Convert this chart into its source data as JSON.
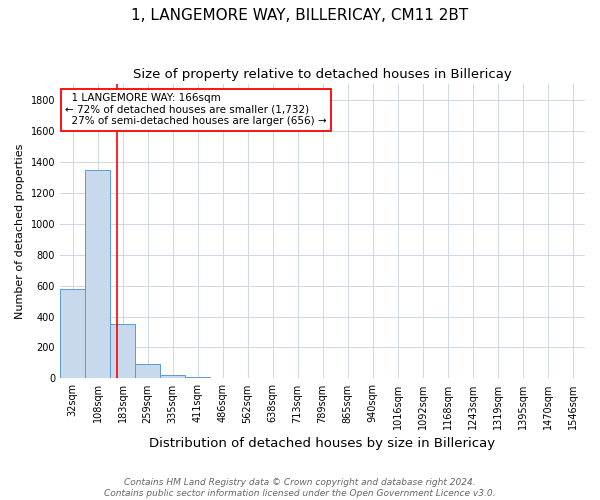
{
  "title": "1, LANGEMORE WAY, BILLERICAY, CM11 2BT",
  "subtitle": "Size of property relative to detached houses in Billericay",
  "xlabel": "Distribution of detached houses by size in Billericay",
  "ylabel": "Number of detached properties",
  "categories": [
    "32sqm",
    "108sqm",
    "183sqm",
    "259sqm",
    "335sqm",
    "411sqm",
    "486sqm",
    "562sqm",
    "638sqm",
    "713sqm",
    "789sqm",
    "865sqm",
    "940sqm",
    "1016sqm",
    "1092sqm",
    "1168sqm",
    "1243sqm",
    "1319sqm",
    "1395sqm",
    "1470sqm",
    "1546sqm"
  ],
  "values": [
    575,
    1350,
    355,
    95,
    22,
    10,
    0,
    0,
    0,
    0,
    0,
    0,
    0,
    0,
    0,
    0,
    0,
    0,
    0,
    0,
    0
  ],
  "bar_color": "#c9d9ed",
  "bar_edge_color": "#5b9bd5",
  "property_value": 166,
  "pct_smaller": 72,
  "count_smaller": 1732,
  "pct_semi_larger": 27,
  "count_semi_larger": 656,
  "red_line_x": 1.773,
  "ylim": [
    0,
    1900
  ],
  "yticks": [
    0,
    200,
    400,
    600,
    800,
    1000,
    1200,
    1400,
    1600,
    1800
  ],
  "footer1": "Contains HM Land Registry data © Crown copyright and database right 2024.",
  "footer2": "Contains public sector information licensed under the Open Government Licence v3.0.",
  "bg_color": "#ffffff",
  "grid_color": "#cdd8e8",
  "title_fontsize": 11,
  "subtitle_fontsize": 9.5,
  "xlabel_fontsize": 9.5,
  "ylabel_fontsize": 8,
  "tick_fontsize": 7,
  "annot_fontsize": 7.5,
  "footer_fontsize": 6.5
}
